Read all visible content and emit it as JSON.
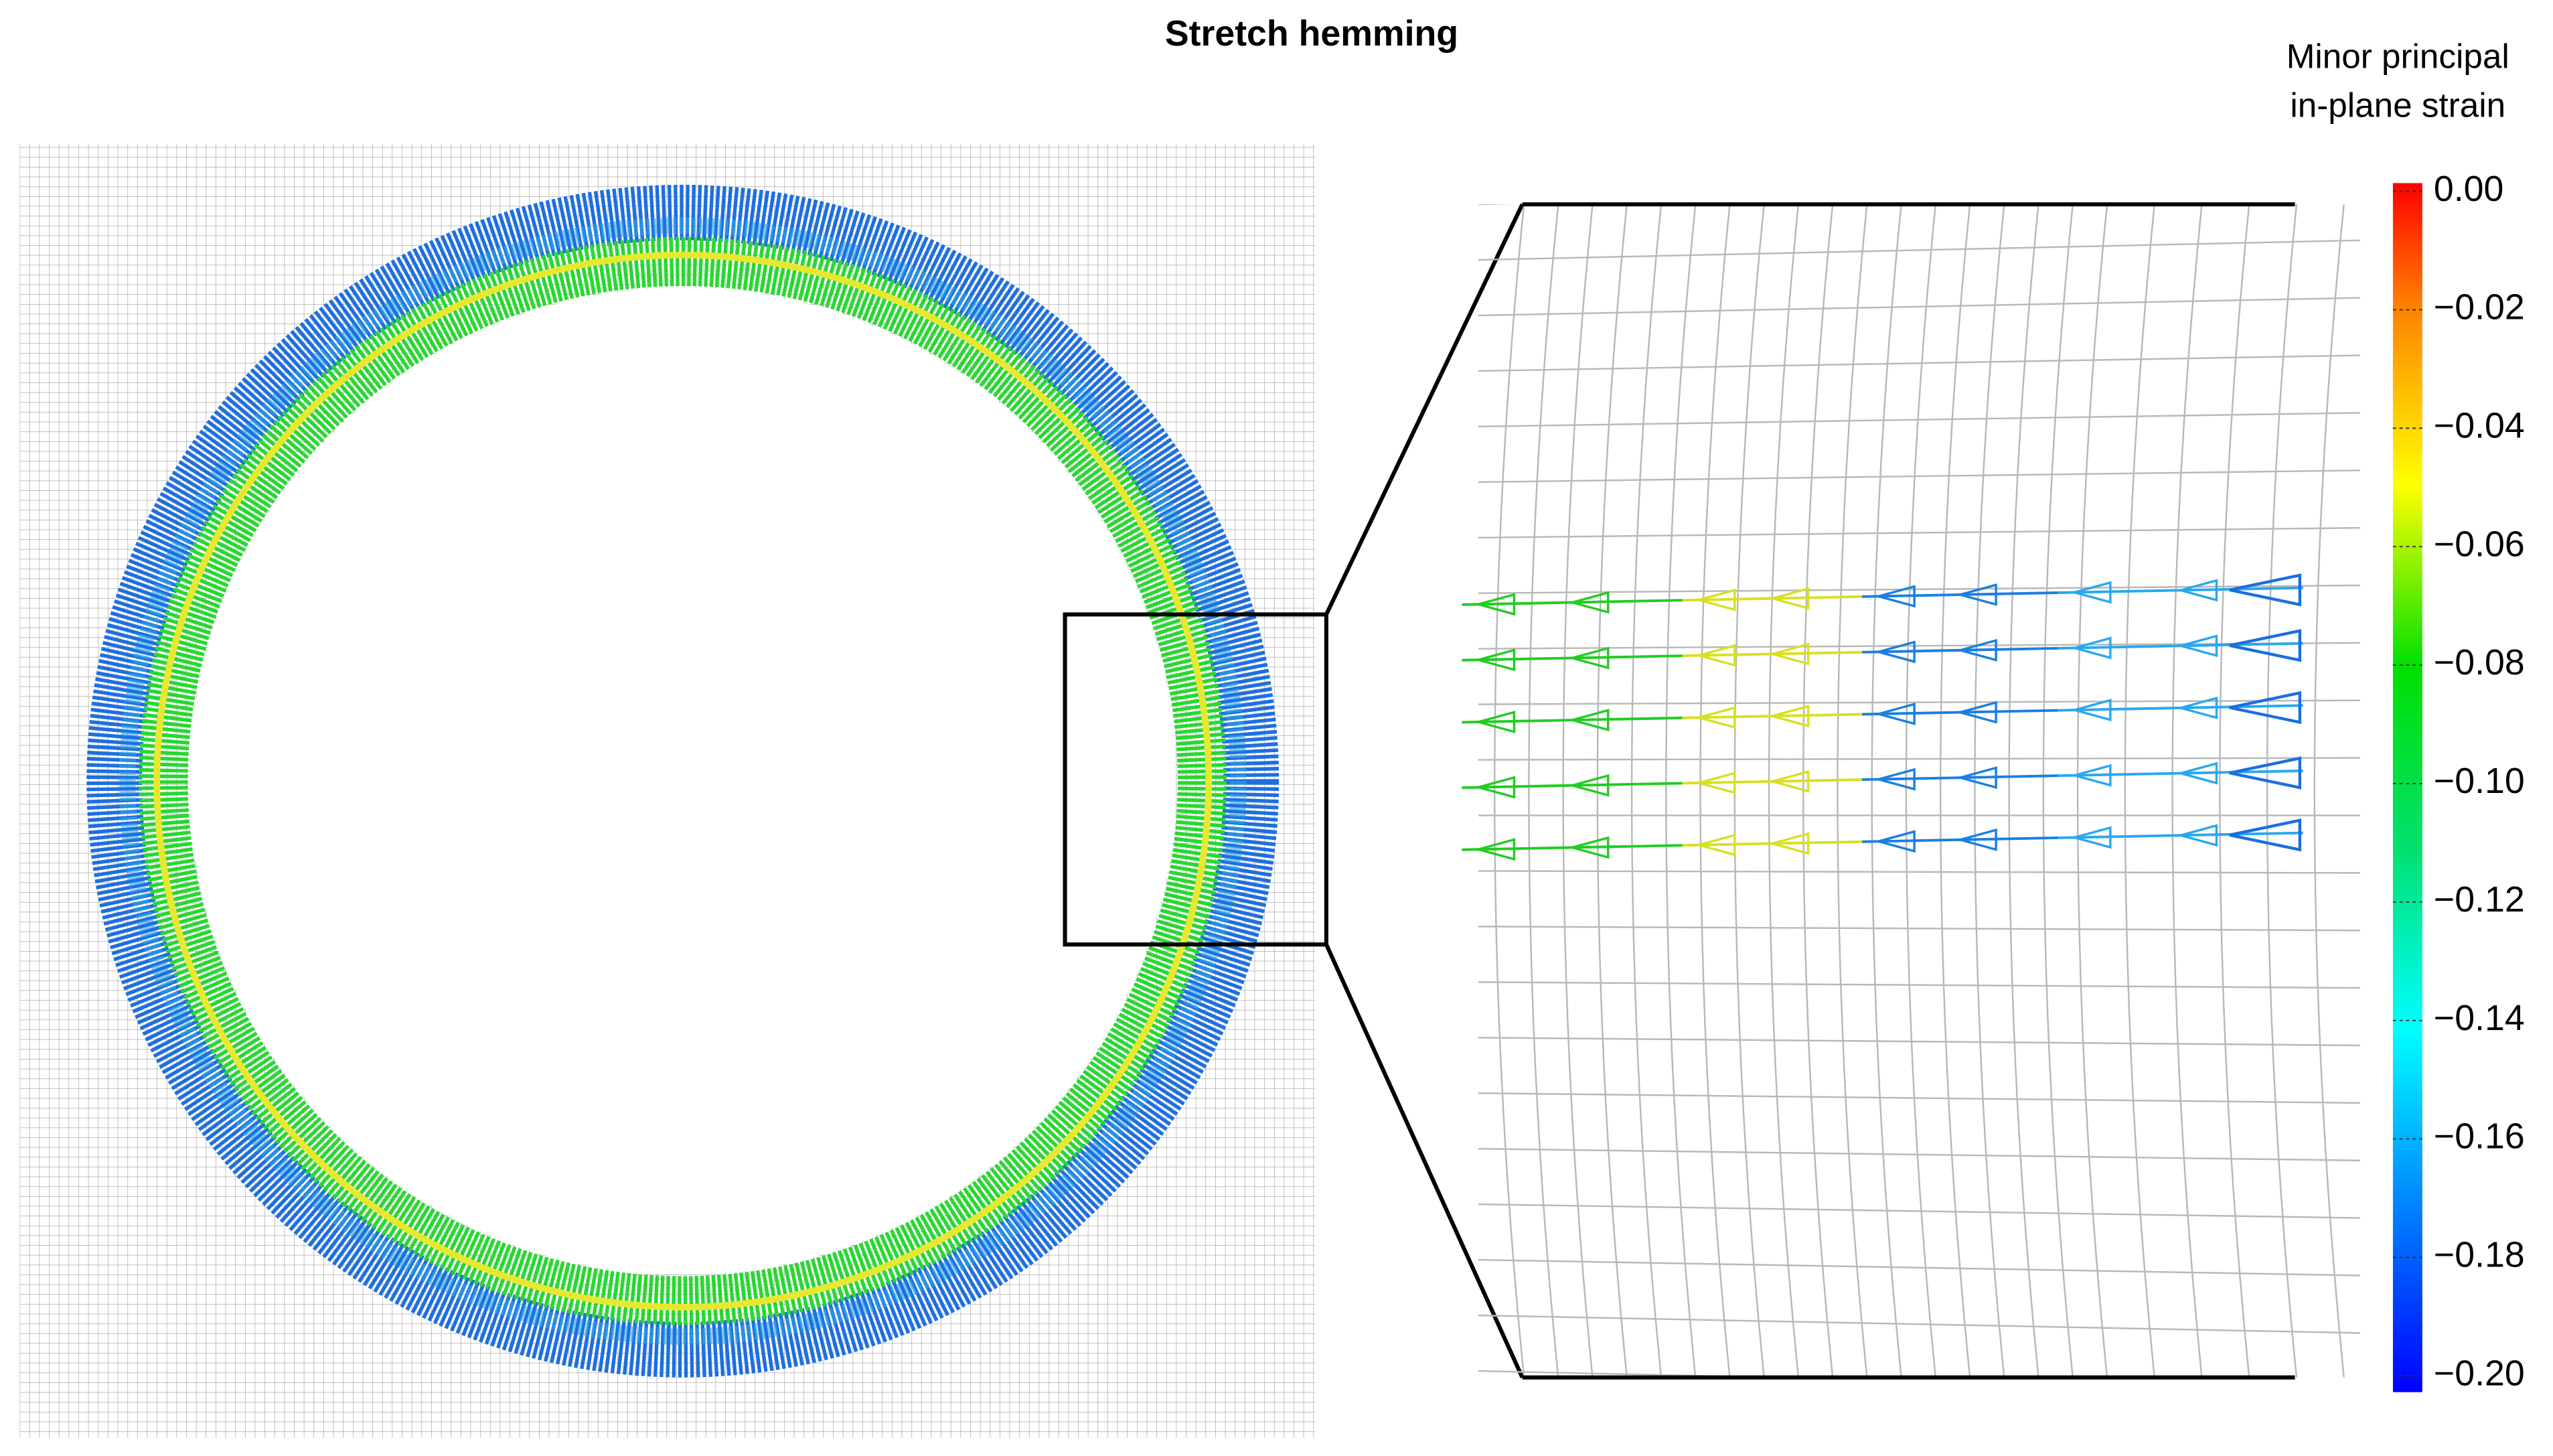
{
  "chart_data": {
    "type": "colormap",
    "title": "Stretch hemming",
    "colorbar_label": [
      "Minor principal",
      "in-plane strain"
    ],
    "clim": [
      -0.2,
      0
    ],
    "cticks": [
      {
        "value": 0,
        "label": "0.00"
      },
      {
        "value": -0.02,
        "label": "−0.02"
      },
      {
        "value": -0.04,
        "label": "−0.04"
      },
      {
        "value": -0.06,
        "label": "−0.06"
      },
      {
        "value": -0.08,
        "label": "−0.08"
      },
      {
        "value": -0.1,
        "label": "−0.10"
      },
      {
        "value": -0.12,
        "label": "−0.12"
      },
      {
        "value": -0.14,
        "label": "−0.14"
      },
      {
        "value": -0.16,
        "label": "−0.16"
      },
      {
        "value": -0.18,
        "label": "−0.18"
      },
      {
        "value": -0.2,
        "label": "−0.20"
      }
    ]
  }
}
